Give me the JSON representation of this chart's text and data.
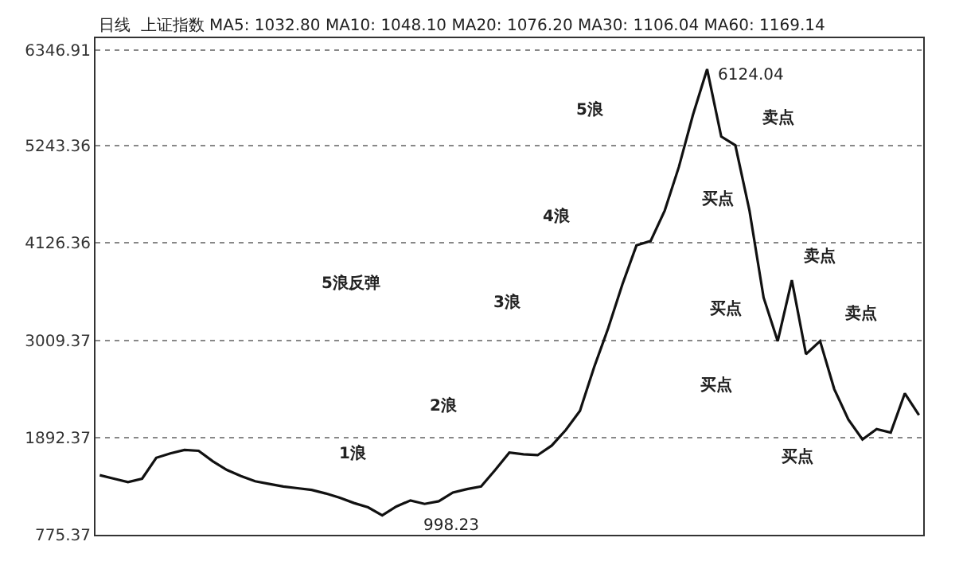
{
  "chart_data": {
    "type": "line",
    "title": "日线  上证指数 MA5: 1032.80 MA10: 1048.10 MA20: 1076.20 MA30: 1106.04 MA60: 1169.14",
    "categories": [
      null,
      null,
      null,
      null,
      null,
      null,
      null,
      null,
      null,
      null,
      null,
      null,
      null,
      null,
      null,
      null,
      null,
      null,
      null,
      null,
      null,
      null,
      null,
      null,
      null,
      null,
      null,
      null,
      null,
      null,
      null,
      null,
      null,
      null,
      null,
      null,
      null,
      null,
      null,
      null,
      null,
      null,
      null,
      null,
      null,
      null,
      null,
      null,
      null,
      null,
      null,
      null,
      null,
      null,
      null,
      null,
      null,
      null,
      null
    ],
    "series": [
      {
        "color": "#111111",
        "values": [
          1460,
          1420,
          1380,
          1420,
          1660,
          1710,
          1750,
          1740,
          1620,
          1520,
          1450,
          1390,
          1360,
          1330,
          1310,
          1290,
          1250,
          1200,
          1140,
          1090,
          998.23,
          1100,
          1170,
          1130,
          1160,
          1260,
          1300,
          1330,
          1520,
          1720,
          1700,
          1690,
          1800,
          1980,
          2200,
          2700,
          3150,
          3650,
          4100,
          4150,
          4500,
          5000,
          5600,
          6124.04,
          5350,
          5250,
          4500,
          3500,
          3000,
          3700,
          2850,
          3000,
          2450,
          2100,
          1870,
          1990,
          1950,
          2400,
          2150
        ]
      }
    ],
    "ylim": [
      775.37,
      6480
    ],
    "yticks": [
      775.37,
      1892.37,
      3009.37,
      4126.36,
      5243.36,
      6346.91
    ],
    "grid": "y",
    "legend": false,
    "line_style": "solid",
    "annotations": [
      "6124.04",
      "998.23",
      "5浪",
      "卖点",
      "4浪",
      "买点",
      "5浪反弹",
      "3浪",
      "卖点",
      "买点",
      "卖点",
      "买点",
      "2浪",
      "1浪",
      "买点"
    ]
  }
}
